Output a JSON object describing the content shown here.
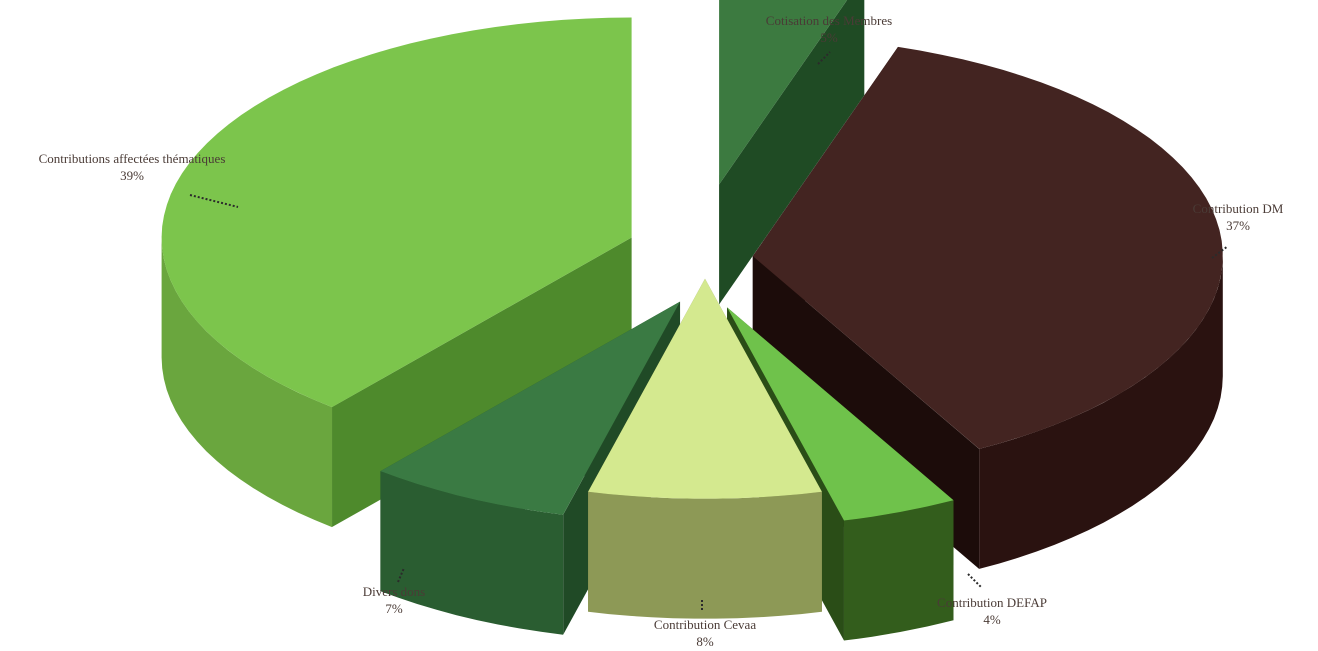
{
  "chart_data": {
    "type": "pie",
    "title": "",
    "slices": [
      {
        "label": "Cotisation des Membres",
        "value": 5,
        "pct_label": "5%",
        "colors": {
          "top": "#3c7a40",
          "side": "#275a2c",
          "side2": "#1f4b24"
        }
      },
      {
        "label": "Contribution DM",
        "value": 37,
        "pct_label": "37%",
        "colors": {
          "top": "#432421",
          "side": "#2a1210",
          "side2": "#1c0c0a"
        }
      },
      {
        "label": "Contribution DEFAP",
        "value": 4,
        "pct_label": "4%",
        "colors": {
          "top": "#6fc24b",
          "side": "#335d1c",
          "side2": "#2a4d17"
        }
      },
      {
        "label": "Contribution Cevaa",
        "value": 8,
        "pct_label": "8%",
        "colors": {
          "top": "#d4e98f",
          "side": "#8d9956",
          "side2": "#6f7a40"
        }
      },
      {
        "label": "Divers dons",
        "value": 7,
        "pct_label": "7%",
        "colors": {
          "top": "#3a7a43",
          "side": "#2a5d31",
          "side2": "#204a26"
        }
      },
      {
        "label": "Contributions affectées thématiques",
        "value": 39,
        "pct_label": "39%",
        "colors": {
          "top": "#7cc54c",
          "side": "#6aa63e",
          "side2": "#4e8a2c"
        }
      }
    ]
  }
}
